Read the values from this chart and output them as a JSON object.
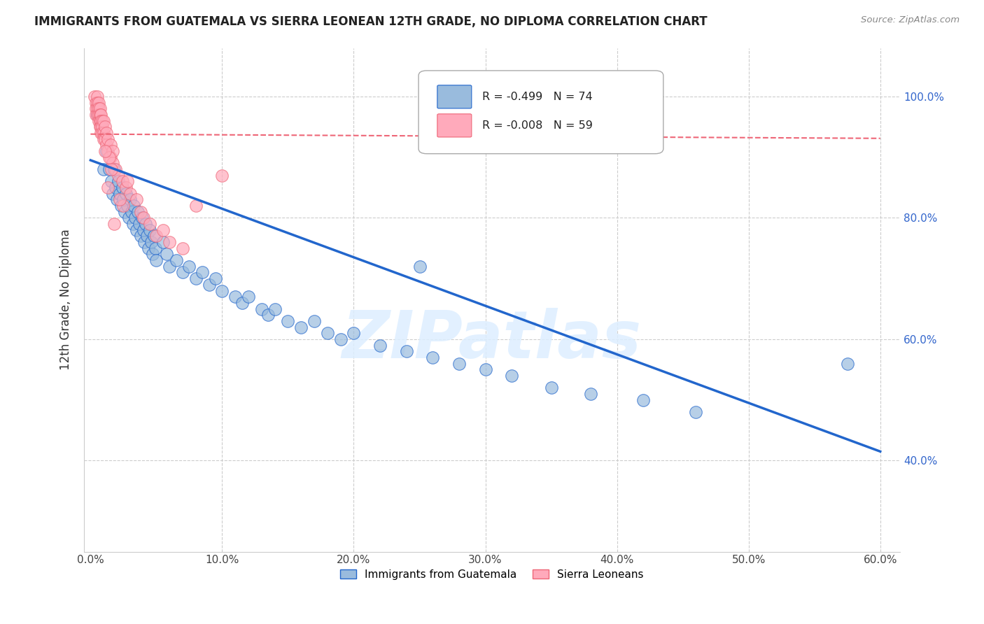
{
  "title": "IMMIGRANTS FROM GUATEMALA VS SIERRA LEONEAN 12TH GRADE, NO DIPLOMA CORRELATION CHART",
  "source": "Source: ZipAtlas.com",
  "ylabel": "12th Grade, No Diploma",
  "legend_label1": "Immigrants from Guatemala",
  "legend_label2": "Sierra Leoneans",
  "R1": "-0.499",
  "N1": "74",
  "R2": "-0.008",
  "N2": "59",
  "color_blue": "#99BBDD",
  "color_pink": "#FFAABB",
  "color_line_blue": "#2266CC",
  "color_line_pink": "#EE6677",
  "watermark": "ZIPatlas",
  "blue_points": [
    [
      0.005,
      0.97
    ],
    [
      0.01,
      0.88
    ],
    [
      0.012,
      0.91
    ],
    [
      0.014,
      0.88
    ],
    [
      0.016,
      0.86
    ],
    [
      0.017,
      0.84
    ],
    [
      0.018,
      0.88
    ],
    [
      0.019,
      0.85
    ],
    [
      0.02,
      0.83
    ],
    [
      0.021,
      0.86
    ],
    [
      0.022,
      0.84
    ],
    [
      0.023,
      0.82
    ],
    [
      0.024,
      0.85
    ],
    [
      0.025,
      0.83
    ],
    [
      0.026,
      0.81
    ],
    [
      0.027,
      0.84
    ],
    [
      0.028,
      0.82
    ],
    [
      0.029,
      0.8
    ],
    [
      0.03,
      0.83
    ],
    [
      0.031,
      0.81
    ],
    [
      0.032,
      0.79
    ],
    [
      0.033,
      0.82
    ],
    [
      0.034,
      0.8
    ],
    [
      0.035,
      0.78
    ],
    [
      0.036,
      0.81
    ],
    [
      0.037,
      0.79
    ],
    [
      0.038,
      0.77
    ],
    [
      0.039,
      0.8
    ],
    [
      0.04,
      0.78
    ],
    [
      0.041,
      0.76
    ],
    [
      0.042,
      0.79
    ],
    [
      0.043,
      0.77
    ],
    [
      0.044,
      0.75
    ],
    [
      0.045,
      0.78
    ],
    [
      0.046,
      0.76
    ],
    [
      0.047,
      0.74
    ],
    [
      0.048,
      0.77
    ],
    [
      0.049,
      0.75
    ],
    [
      0.05,
      0.73
    ],
    [
      0.055,
      0.76
    ],
    [
      0.058,
      0.74
    ],
    [
      0.06,
      0.72
    ],
    [
      0.065,
      0.73
    ],
    [
      0.07,
      0.71
    ],
    [
      0.075,
      0.72
    ],
    [
      0.08,
      0.7
    ],
    [
      0.085,
      0.71
    ],
    [
      0.09,
      0.69
    ],
    [
      0.095,
      0.7
    ],
    [
      0.1,
      0.68
    ],
    [
      0.11,
      0.67
    ],
    [
      0.115,
      0.66
    ],
    [
      0.12,
      0.67
    ],
    [
      0.13,
      0.65
    ],
    [
      0.135,
      0.64
    ],
    [
      0.14,
      0.65
    ],
    [
      0.15,
      0.63
    ],
    [
      0.16,
      0.62
    ],
    [
      0.17,
      0.63
    ],
    [
      0.18,
      0.61
    ],
    [
      0.19,
      0.6
    ],
    [
      0.2,
      0.61
    ],
    [
      0.22,
      0.59
    ],
    [
      0.24,
      0.58
    ],
    [
      0.25,
      0.72
    ],
    [
      0.26,
      0.57
    ],
    [
      0.28,
      0.56
    ],
    [
      0.3,
      0.55
    ],
    [
      0.32,
      0.54
    ],
    [
      0.35,
      0.52
    ],
    [
      0.38,
      0.51
    ],
    [
      0.42,
      0.5
    ],
    [
      0.46,
      0.48
    ],
    [
      0.575,
      0.56
    ]
  ],
  "pink_points": [
    [
      0.003,
      1.0
    ],
    [
      0.004,
      0.99
    ],
    [
      0.004,
      0.98
    ],
    [
      0.004,
      0.97
    ],
    [
      0.005,
      1.0
    ],
    [
      0.005,
      0.99
    ],
    [
      0.005,
      0.98
    ],
    [
      0.005,
      0.97
    ],
    [
      0.006,
      0.99
    ],
    [
      0.006,
      0.98
    ],
    [
      0.006,
      0.97
    ],
    [
      0.006,
      0.96
    ],
    [
      0.007,
      0.98
    ],
    [
      0.007,
      0.97
    ],
    [
      0.007,
      0.96
    ],
    [
      0.007,
      0.95
    ],
    [
      0.008,
      0.97
    ],
    [
      0.008,
      0.96
    ],
    [
      0.008,
      0.95
    ],
    [
      0.008,
      0.94
    ],
    [
      0.009,
      0.96
    ],
    [
      0.009,
      0.95
    ],
    [
      0.009,
      0.94
    ],
    [
      0.01,
      0.96
    ],
    [
      0.01,
      0.94
    ],
    [
      0.01,
      0.93
    ],
    [
      0.011,
      0.95
    ],
    [
      0.011,
      0.93
    ],
    [
      0.012,
      0.94
    ],
    [
      0.012,
      0.92
    ],
    [
      0.013,
      0.93
    ],
    [
      0.013,
      0.91
    ],
    [
      0.015,
      0.92
    ],
    [
      0.015,
      0.9
    ],
    [
      0.017,
      0.91
    ],
    [
      0.017,
      0.89
    ],
    [
      0.019,
      0.88
    ],
    [
      0.021,
      0.87
    ],
    [
      0.024,
      0.86
    ],
    [
      0.027,
      0.85
    ],
    [
      0.03,
      0.84
    ],
    [
      0.035,
      0.83
    ],
    [
      0.038,
      0.81
    ],
    [
      0.04,
      0.8
    ],
    [
      0.045,
      0.79
    ],
    [
      0.05,
      0.77
    ],
    [
      0.055,
      0.78
    ],
    [
      0.06,
      0.76
    ],
    [
      0.07,
      0.75
    ],
    [
      0.08,
      0.82
    ],
    [
      0.1,
      0.87
    ],
    [
      0.025,
      0.82
    ],
    [
      0.018,
      0.79
    ],
    [
      0.013,
      0.85
    ],
    [
      0.022,
      0.83
    ],
    [
      0.028,
      0.86
    ],
    [
      0.016,
      0.88
    ],
    [
      0.014,
      0.9
    ],
    [
      0.011,
      0.91
    ]
  ],
  "blue_trendline": [
    [
      0.0,
      0.895
    ],
    [
      0.6,
      0.415
    ]
  ],
  "pink_trendline": [
    [
      0.0,
      0.938
    ],
    [
      0.6,
      0.931
    ]
  ],
  "xlim": [
    -0.005,
    0.615
  ],
  "ylim": [
    0.25,
    1.08
  ],
  "xtick_vals": [
    0.0,
    0.1,
    0.2,
    0.3,
    0.4,
    0.5,
    0.6
  ],
  "xtick_labels": [
    "0.0%",
    "10.0%",
    "20.0%",
    "30.0%",
    "40.0%",
    "50.0%",
    "60.0%"
  ],
  "ytick_vals": [
    0.4,
    0.6,
    0.8,
    1.0
  ],
  "ytick_labels": [
    "40.0%",
    "60.0%",
    "80.0%",
    "100.0%"
  ],
  "gridline_y": [
    0.4,
    0.6,
    0.8,
    1.0
  ],
  "gridline_x": [
    0.1,
    0.2,
    0.3,
    0.4,
    0.5,
    0.6
  ]
}
